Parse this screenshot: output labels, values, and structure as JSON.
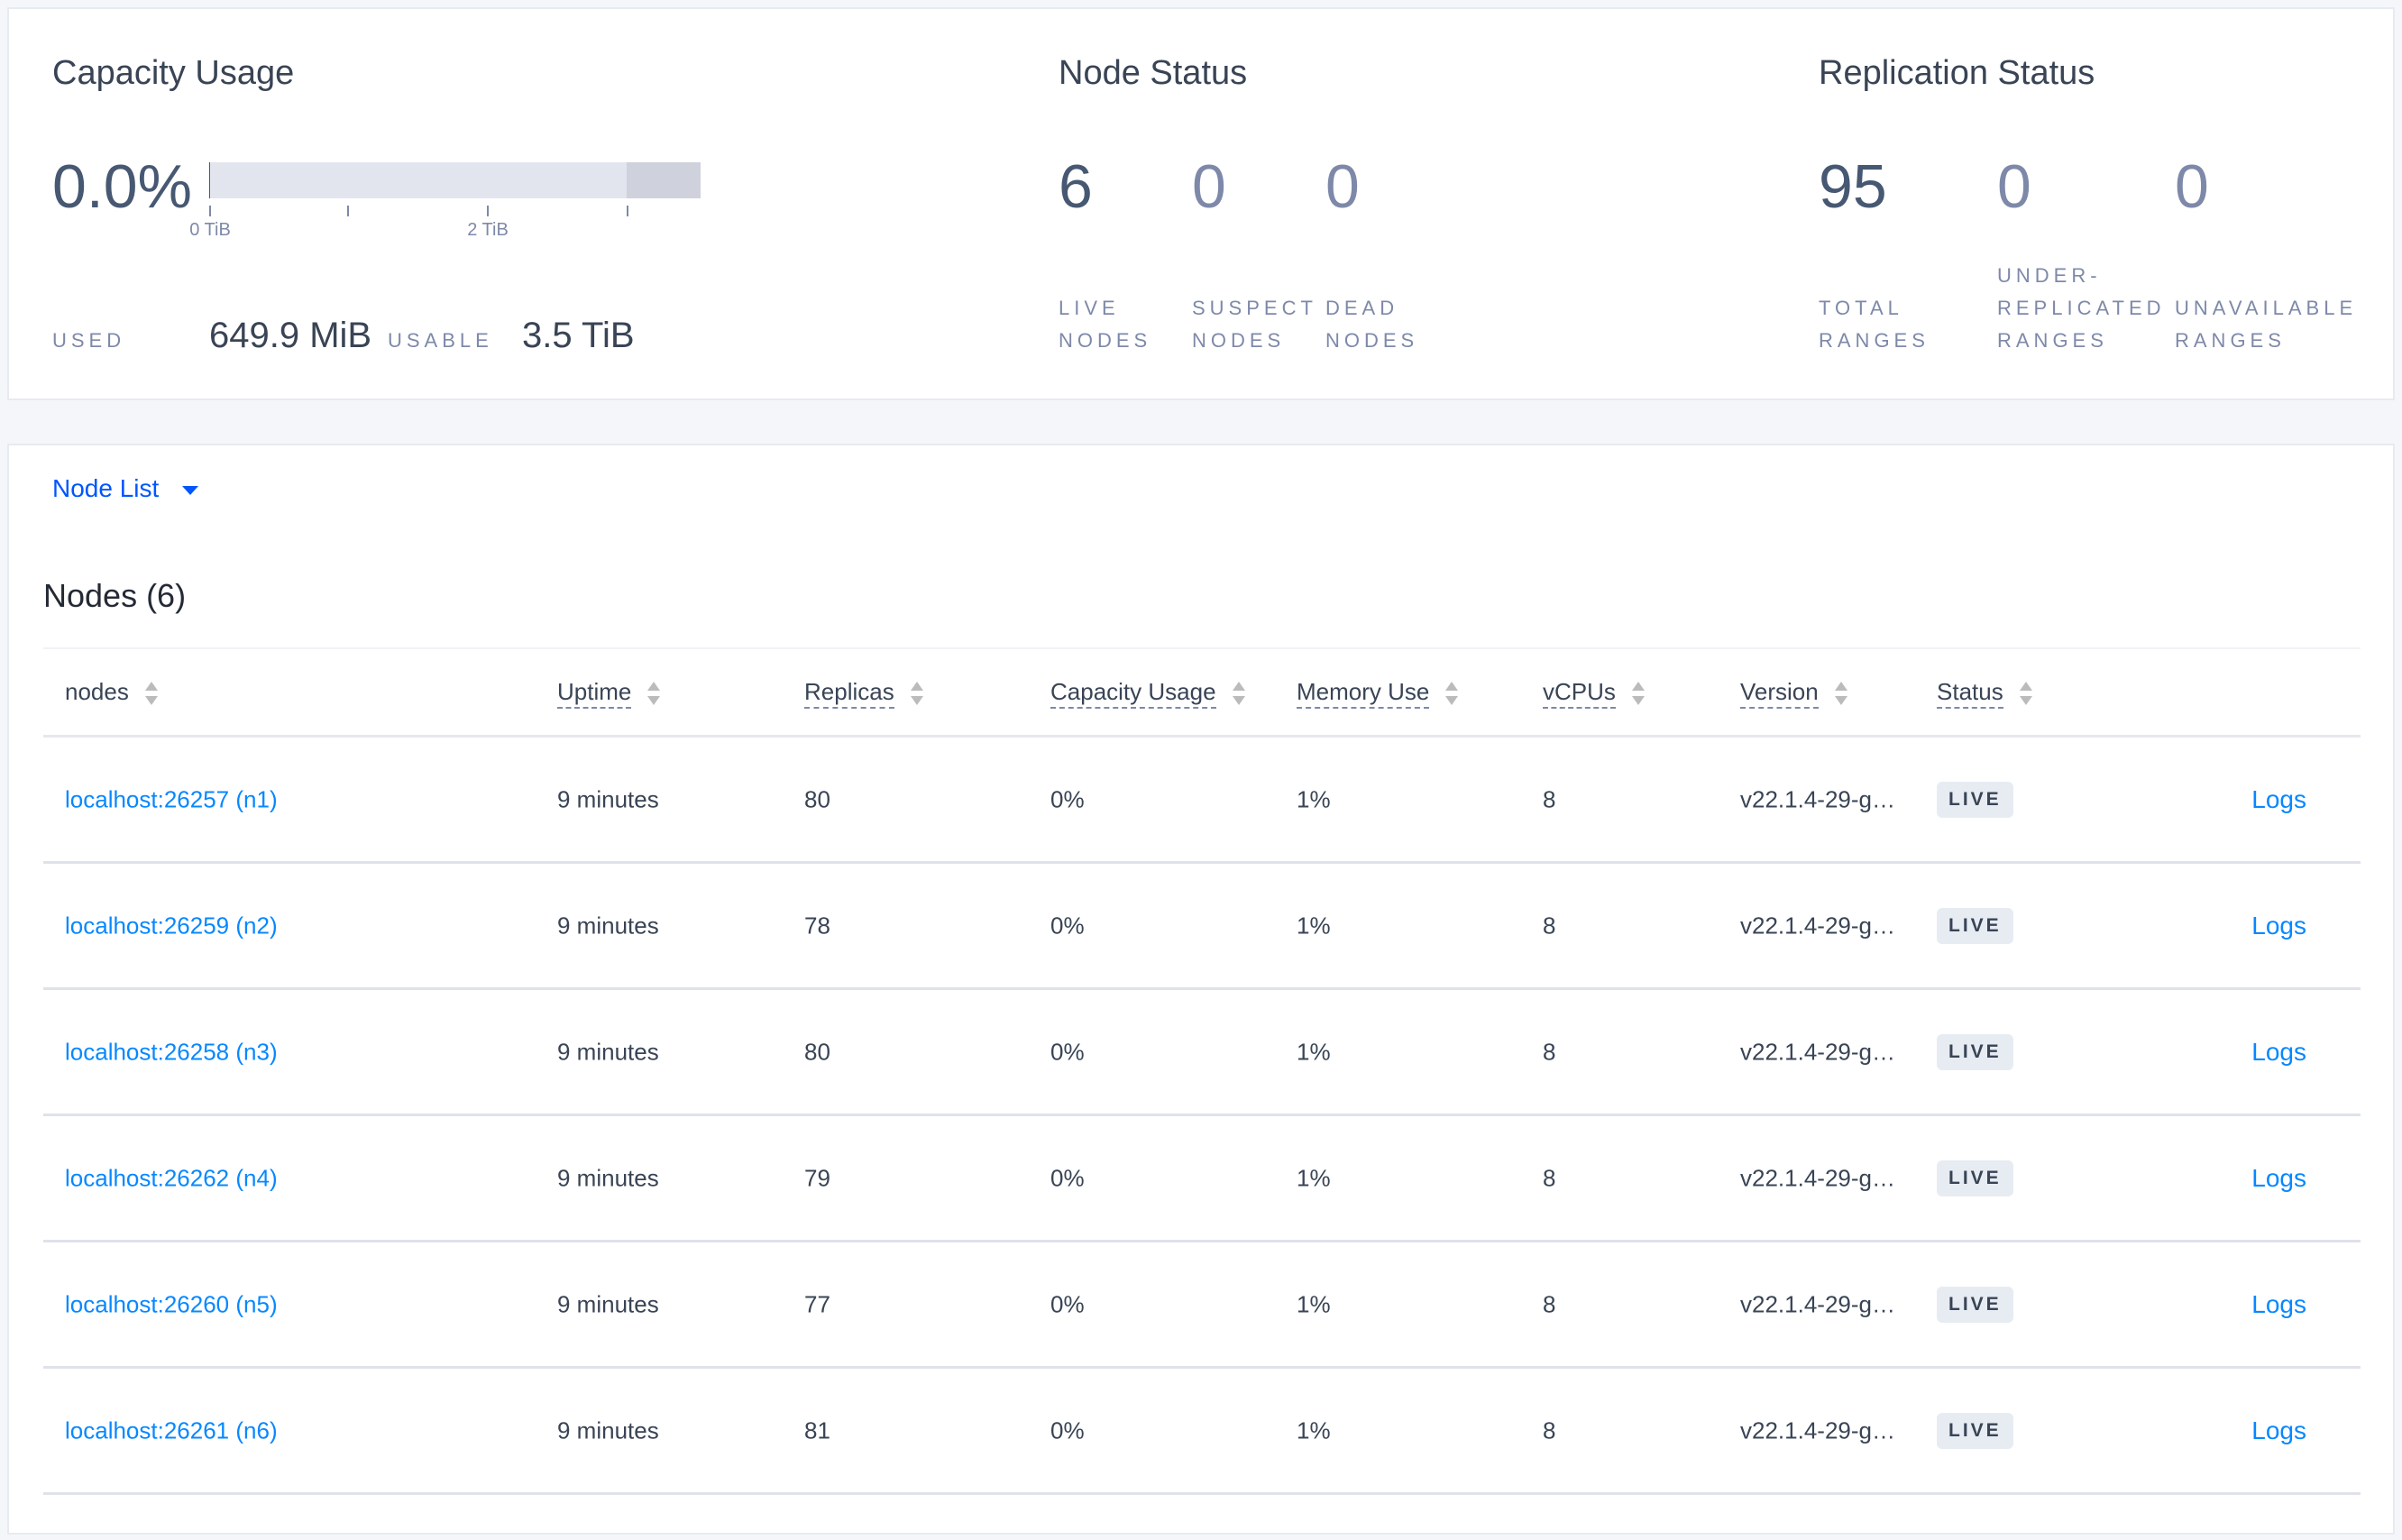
{
  "capacity": {
    "title": "Capacity Usage",
    "percent": "0.0%",
    "used_fraction": 0.0002,
    "usable_fraction": 0.85,
    "ticks": [
      "0 TiB",
      "2 TiB"
    ],
    "used_label": "USED",
    "used_value": "649.9 MiB",
    "usable_label": "USABLE",
    "usable_value": "3.5 TiB"
  },
  "node_status": {
    "title": "Node Status",
    "stats": [
      {
        "value": "6",
        "l1": "LIVE",
        "l2": "NODES"
      },
      {
        "value": "0",
        "l1": "SUSPECT",
        "l2": "NODES"
      },
      {
        "value": "0",
        "l1": "DEAD",
        "l2": "NODES"
      }
    ]
  },
  "replication": {
    "title": "Replication Status",
    "stats": [
      {
        "value": "95",
        "l0": "",
        "l1": "TOTAL",
        "l2": "RANGES"
      },
      {
        "value": "0",
        "l0": "UNDER-",
        "l1": "REPLICATED",
        "l2": "RANGES"
      },
      {
        "value": "0",
        "l0": "",
        "l1": "UNAVAILABLE",
        "l2": "RANGES"
      }
    ]
  },
  "node_list": {
    "dropdown_label": "Node List",
    "heading": "Nodes (6)"
  },
  "table": {
    "columns": [
      "nodes",
      "Uptime",
      "Replicas",
      "Capacity Usage",
      "Memory Use",
      "vCPUs",
      "Version",
      "Status"
    ],
    "rows": [
      {
        "node": "localhost:26257 (n1)",
        "uptime": "9 minutes",
        "replicas": "80",
        "capacity": "0%",
        "memory": "1%",
        "vcpus": "8",
        "version": "v22.1.4-29-g…",
        "status": "LIVE",
        "logs": "Logs"
      },
      {
        "node": "localhost:26259 (n2)",
        "uptime": "9 minutes",
        "replicas": "78",
        "capacity": "0%",
        "memory": "1%",
        "vcpus": "8",
        "version": "v22.1.4-29-g…",
        "status": "LIVE",
        "logs": "Logs"
      },
      {
        "node": "localhost:26258 (n3)",
        "uptime": "9 minutes",
        "replicas": "80",
        "capacity": "0%",
        "memory": "1%",
        "vcpus": "8",
        "version": "v22.1.4-29-g…",
        "status": "LIVE",
        "logs": "Logs"
      },
      {
        "node": "localhost:26262 (n4)",
        "uptime": "9 minutes",
        "replicas": "79",
        "capacity": "0%",
        "memory": "1%",
        "vcpus": "8",
        "version": "v22.1.4-29-g…",
        "status": "LIVE",
        "logs": "Logs"
      },
      {
        "node": "localhost:26260 (n5)",
        "uptime": "9 minutes",
        "replicas": "77",
        "capacity": "0%",
        "memory": "1%",
        "vcpus": "8",
        "version": "v22.1.4-29-g…",
        "status": "LIVE",
        "logs": "Logs"
      },
      {
        "node": "localhost:26261 (n6)",
        "uptime": "9 minutes",
        "replicas": "81",
        "capacity": "0%",
        "memory": "1%",
        "vcpus": "8",
        "version": "v22.1.4-29-g…",
        "status": "LIVE",
        "logs": "Logs"
      }
    ]
  },
  "colors": {
    "link": "#0788ff",
    "dropdown": "#0055ff",
    "bar_free": "#e2e5ee",
    "bar_unusable": "#cfd2dc"
  }
}
